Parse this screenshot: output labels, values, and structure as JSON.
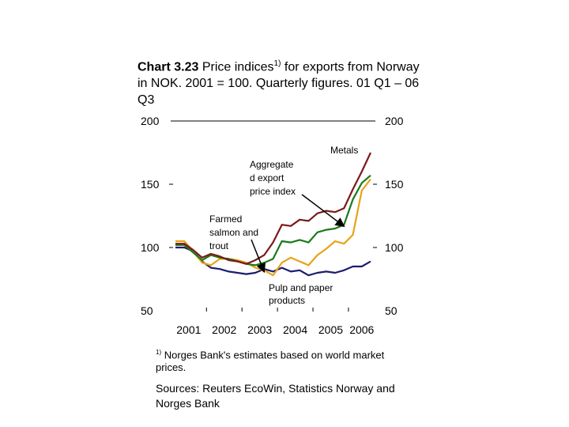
{
  "title": {
    "bold": "Chart 3.23",
    "text_a": " Price indices",
    "superscript": "1)",
    "text_b": " for exports from Norway in NOK. 2001 = 100. Quarterly figures. 01 Q1 – 06 Q3"
  },
  "footnote": {
    "marker": "1)",
    "text": " Norges Bank's estimates based on world market prices."
  },
  "sources": "Sources: Reuters EcoWin, Statistics Norway and Norges Bank",
  "colors": {
    "metals": "#7b1a1a",
    "aggregated": "#1a7a1a",
    "salmon": "#e8a317",
    "pulp": "#1c1c6e"
  },
  "chart_data": {
    "type": "line",
    "title": "Price indices for exports from Norway in NOK. 2001 = 100. Quarterly figures. 01 Q1 – 06 Q3",
    "xlabel": "",
    "ylabel": "",
    "ylim": [
      50,
      200
    ],
    "yticks": [
      50,
      100,
      150,
      200
    ],
    "ytick_labels_left": [
      "50",
      "100",
      "150",
      "200"
    ],
    "ytick_labels_right": [
      "50",
      "100",
      "150",
      "200"
    ],
    "xtick_labels": [
      "2001",
      "2002",
      "2003",
      "2004",
      "2005",
      "2006"
    ],
    "x": [
      "01Q1",
      "01Q2",
      "01Q3",
      "01Q4",
      "02Q1",
      "02Q2",
      "02Q3",
      "02Q4",
      "03Q1",
      "03Q2",
      "03Q3",
      "03Q4",
      "04Q1",
      "04Q2",
      "04Q3",
      "04Q4",
      "05Q1",
      "05Q2",
      "05Q3",
      "05Q4",
      "06Q1",
      "06Q2",
      "06Q3"
    ],
    "series": [
      {
        "name": "Metals",
        "key": "metals",
        "values": [
          103,
          103,
          98,
          92,
          95,
          93,
          90,
          89,
          87,
          90,
          94,
          104,
          118,
          117,
          122,
          121,
          127,
          129,
          128,
          131,
          146,
          160,
          175
        ]
      },
      {
        "name": "Aggregated export price index",
        "key": "aggregated",
        "values": [
          102,
          102,
          96,
          90,
          94,
          92,
          91,
          89,
          87,
          86,
          88,
          91,
          105,
          104,
          106,
          104,
          112,
          114,
          115,
          118,
          138,
          151,
          157
        ]
      },
      {
        "name": "Farmed salmon and trout",
        "key": "salmon",
        "values": [
          105,
          105,
          97,
          88,
          86,
          91,
          91,
          90,
          88,
          84,
          82,
          78,
          88,
          92,
          89,
          86,
          94,
          99,
          105,
          103,
          110,
          145,
          154
        ]
      },
      {
        "name": "Pulp and paper products",
        "key": "pulp",
        "values": [
          100,
          100,
          97,
          89,
          84,
          83,
          81,
          80,
          79,
          80,
          83,
          81,
          84,
          81,
          82,
          78,
          80,
          81,
          80,
          82,
          85,
          85,
          89
        ]
      }
    ],
    "annotations": [
      {
        "series": "metals",
        "lines": [
          "Metals"
        ]
      },
      {
        "series": "aggregated",
        "lines": [
          "Aggregate",
          "d export",
          "price index"
        ]
      },
      {
        "series": "salmon",
        "lines": [
          "Farmed",
          "salmon and",
          "trout"
        ]
      },
      {
        "series": "pulp",
        "lines": [
          "Pulp and paper",
          "products"
        ]
      }
    ]
  }
}
